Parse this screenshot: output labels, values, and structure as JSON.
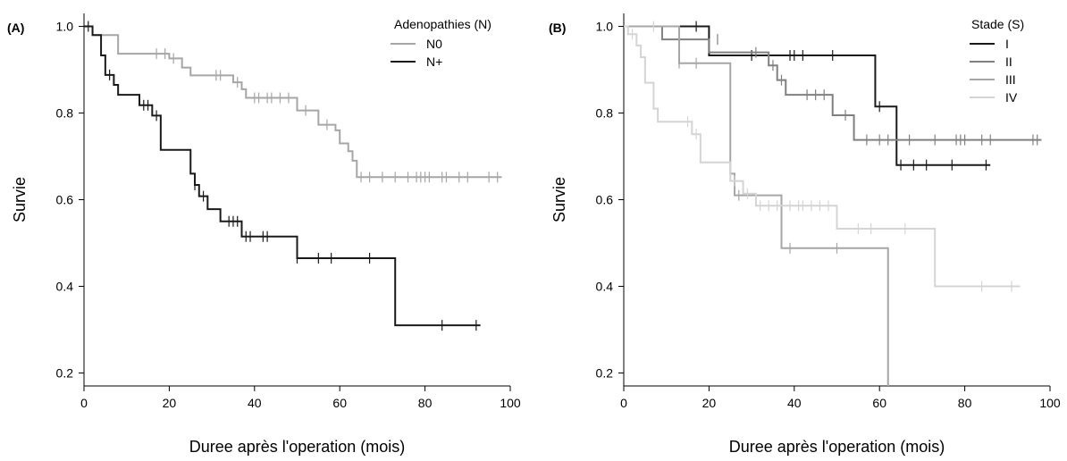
{
  "chart_data": [
    {
      "type": "line",
      "panel_label": "(A)",
      "xlabel": "Duree après l'operation (mois)",
      "ylabel": "Survie",
      "xlim": [
        0,
        100
      ],
      "ylim": [
        0.17,
        1.03
      ],
      "xticks": [
        0,
        20,
        40,
        60,
        80,
        100
      ],
      "yticks": [
        0.2,
        0.4,
        0.6,
        0.8,
        1.0
      ],
      "ytick_labels": [
        "0.2",
        "0.4",
        "0.6",
        "0.8",
        "1.0"
      ],
      "legend": {
        "title": "Adenopathies (N)",
        "placement": "top-right"
      },
      "grid": false,
      "series": [
        {
          "name": "N0",
          "color": "#a6a6a6",
          "steps": [
            [
              0,
              1.0
            ],
            [
              2,
              1.0
            ],
            [
              2,
              0.98
            ],
            [
              8,
              0.98
            ],
            [
              8,
              0.937
            ],
            [
              20,
              0.937
            ],
            [
              20,
              0.926
            ],
            [
              23,
              0.926
            ],
            [
              23,
              0.905
            ],
            [
              25,
              0.905
            ],
            [
              25,
              0.887
            ],
            [
              35,
              0.887
            ],
            [
              35,
              0.871
            ],
            [
              37,
              0.871
            ],
            [
              37,
              0.855
            ],
            [
              38,
              0.855
            ],
            [
              38,
              0.835
            ],
            [
              50,
              0.835
            ],
            [
              50,
              0.806
            ],
            [
              55,
              0.806
            ],
            [
              55,
              0.773
            ],
            [
              59,
              0.773
            ],
            [
              59,
              0.76
            ],
            [
              60,
              0.76
            ],
            [
              60,
              0.73
            ],
            [
              62,
              0.73
            ],
            [
              62,
              0.712
            ],
            [
              63,
              0.712
            ],
            [
              63,
              0.69
            ],
            [
              64,
              0.69
            ],
            [
              64,
              0.652
            ],
            [
              98,
              0.652
            ]
          ],
          "censored": [
            [
              17,
              0.937
            ],
            [
              19,
              0.937
            ],
            [
              21,
              0.926
            ],
            [
              31,
              0.887
            ],
            [
              32,
              0.887
            ],
            [
              36,
              0.871
            ],
            [
              40,
              0.835
            ],
            [
              41,
              0.835
            ],
            [
              43,
              0.835
            ],
            [
              44,
              0.835
            ],
            [
              46,
              0.835
            ],
            [
              48,
              0.835
            ],
            [
              52,
              0.806
            ],
            [
              57,
              0.773
            ],
            [
              65,
              0.652
            ],
            [
              67,
              0.652
            ],
            [
              70,
              0.652
            ],
            [
              73,
              0.652
            ],
            [
              76,
              0.652
            ],
            [
              78,
              0.652
            ],
            [
              79,
              0.652
            ],
            [
              80,
              0.652
            ],
            [
              81,
              0.652
            ],
            [
              84,
              0.652
            ],
            [
              85,
              0.652
            ],
            [
              88,
              0.652
            ],
            [
              90,
              0.652
            ],
            [
              95,
              0.652
            ],
            [
              97,
              0.652
            ]
          ]
        },
        {
          "name": "N+",
          "color": "#1a1a1a",
          "steps": [
            [
              0,
              1.0
            ],
            [
              2,
              1.0
            ],
            [
              2,
              0.98
            ],
            [
              4,
              0.98
            ],
            [
              4,
              0.933
            ],
            [
              5,
              0.933
            ],
            [
              5,
              0.888
            ],
            [
              7,
              0.888
            ],
            [
              7,
              0.865
            ],
            [
              8,
              0.865
            ],
            [
              8,
              0.842
            ],
            [
              13,
              0.842
            ],
            [
              13,
              0.818
            ],
            [
              16,
              0.818
            ],
            [
              16,
              0.794
            ],
            [
              18,
              0.794
            ],
            [
              18,
              0.715
            ],
            [
              25,
              0.715
            ],
            [
              25,
              0.66
            ],
            [
              26,
              0.66
            ],
            [
              26,
              0.634
            ],
            [
              27,
              0.634
            ],
            [
              27,
              0.608
            ],
            [
              29,
              0.608
            ],
            [
              29,
              0.578
            ],
            [
              32,
              0.578
            ],
            [
              32,
              0.55
            ],
            [
              37,
              0.55
            ],
            [
              37,
              0.515
            ],
            [
              50,
              0.515
            ],
            [
              50,
              0.465
            ],
            [
              73,
              0.465
            ],
            [
              73,
              0.31
            ],
            [
              93,
              0.31
            ]
          ],
          "censored": [
            [
              1,
              1.0
            ],
            [
              6,
              0.888
            ],
            [
              14,
              0.818
            ],
            [
              15,
              0.818
            ],
            [
              17,
              0.794
            ],
            [
              26,
              0.634
            ],
            [
              28,
              0.608
            ],
            [
              34,
              0.55
            ],
            [
              35,
              0.55
            ],
            [
              36,
              0.55
            ],
            [
              38,
              0.515
            ],
            [
              39,
              0.515
            ],
            [
              42,
              0.515
            ],
            [
              43,
              0.515
            ],
            [
              50,
              0.465
            ],
            [
              55,
              0.465
            ],
            [
              58,
              0.465
            ],
            [
              67,
              0.465
            ],
            [
              84,
              0.31
            ],
            [
              92,
              0.31
            ]
          ]
        }
      ]
    },
    {
      "type": "line",
      "panel_label": "(B)",
      "xlabel": "Duree après l'operation (mois)",
      "ylabel": "Survie",
      "xlim": [
        0,
        100
      ],
      "ylim": [
        0.17,
        1.03
      ],
      "xticks": [
        0,
        20,
        40,
        60,
        80,
        100
      ],
      "yticks": [
        0.2,
        0.4,
        0.6,
        0.8,
        1.0
      ],
      "ytick_labels": [
        "0.2",
        "0.4",
        "0.6",
        "0.8",
        "1.0"
      ],
      "legend": {
        "title": "Stade (S)",
        "placement": "top-right"
      },
      "grid": false,
      "series": [
        {
          "name": "I",
          "color": "#1a1a1a",
          "steps": [
            [
              0,
              1.0
            ],
            [
              20,
              1.0
            ],
            [
              20,
              0.933
            ],
            [
              59,
              0.933
            ],
            [
              59,
              0.815
            ],
            [
              64,
              0.815
            ],
            [
              64,
              0.68
            ],
            [
              86,
              0.68
            ]
          ],
          "censored": [
            [
              17,
              1.0
            ],
            [
              30,
              0.933
            ],
            [
              39,
              0.933
            ],
            [
              40,
              0.933
            ],
            [
              42,
              0.933
            ],
            [
              49,
              0.933
            ],
            [
              60,
              0.815
            ],
            [
              65,
              0.68
            ],
            [
              68,
              0.68
            ],
            [
              71,
              0.68
            ],
            [
              77,
              0.68
            ],
            [
              85,
              0.68
            ]
          ]
        },
        {
          "name": "II",
          "color": "#808080",
          "steps": [
            [
              0,
              1.0
            ],
            [
              9,
              1.0
            ],
            [
              9,
              0.97
            ],
            [
              20,
              0.97
            ],
            [
              20,
              0.94
            ],
            [
              34,
              0.94
            ],
            [
              34,
              0.91
            ],
            [
              36,
              0.91
            ],
            [
              36,
              0.876
            ],
            [
              38,
              0.876
            ],
            [
              38,
              0.842
            ],
            [
              49,
              0.842
            ],
            [
              49,
              0.795
            ],
            [
              54,
              0.795
            ],
            [
              54,
              0.738
            ],
            [
              98,
              0.738
            ]
          ],
          "censored": [
            [
              22,
              0.97
            ],
            [
              31,
              0.94
            ],
            [
              35,
              0.91
            ],
            [
              37,
              0.876
            ],
            [
              43,
              0.842
            ],
            [
              45,
              0.842
            ],
            [
              47,
              0.842
            ],
            [
              52,
              0.795
            ],
            [
              57,
              0.738
            ],
            [
              60,
              0.738
            ],
            [
              62,
              0.738
            ],
            [
              67,
              0.738
            ],
            [
              73,
              0.738
            ],
            [
              78,
              0.738
            ],
            [
              79,
              0.738
            ],
            [
              80,
              0.738
            ],
            [
              84,
              0.738
            ],
            [
              86,
              0.738
            ],
            [
              96,
              0.738
            ],
            [
              97,
              0.738
            ]
          ]
        },
        {
          "name": "III",
          "color": "#a6a6a6",
          "steps": [
            [
              0,
              1.0
            ],
            [
              13,
              1.0
            ],
            [
              13,
              0.915
            ],
            [
              25,
              0.915
            ],
            [
              25,
              0.66
            ],
            [
              26,
              0.66
            ],
            [
              26,
              0.61
            ],
            [
              37,
              0.61
            ],
            [
              37,
              0.488
            ],
            [
              62,
              0.488
            ],
            [
              62,
              0.17
            ]
          ],
          "censored": [
            [
              13,
              0.915
            ],
            [
              17,
              0.915
            ],
            [
              27,
              0.61
            ],
            [
              39,
              0.488
            ],
            [
              50,
              0.488
            ]
          ]
        },
        {
          "name": "IV",
          "color": "#d4d4d4",
          "steps": [
            [
              0,
              1.0
            ],
            [
              1,
              1.0
            ],
            [
              1,
              0.982
            ],
            [
              3,
              0.982
            ],
            [
              3,
              0.956
            ],
            [
              4,
              0.956
            ],
            [
              4,
              0.929
            ],
            [
              5,
              0.929
            ],
            [
              5,
              0.87
            ],
            [
              7,
              0.87
            ],
            [
              7,
              0.81
            ],
            [
              8,
              0.81
            ],
            [
              8,
              0.78
            ],
            [
              16,
              0.78
            ],
            [
              16,
              0.751
            ],
            [
              18,
              0.751
            ],
            [
              18,
              0.686
            ],
            [
              25,
              0.686
            ],
            [
              25,
              0.643
            ],
            [
              28,
              0.643
            ],
            [
              28,
              0.614
            ],
            [
              31,
              0.614
            ],
            [
              31,
              0.586
            ],
            [
              50,
              0.586
            ],
            [
              50,
              0.533
            ],
            [
              73,
              0.533
            ],
            [
              73,
              0.4
            ],
            [
              93,
              0.4
            ]
          ],
          "censored": [
            [
              2,
              0.982
            ],
            [
              7,
              1.0
            ],
            [
              15,
              0.78
            ],
            [
              17,
              0.751
            ],
            [
              26,
              0.643
            ],
            [
              29,
              0.614
            ],
            [
              32,
              0.586
            ],
            [
              34,
              0.586
            ],
            [
              36,
              0.586
            ],
            [
              39,
              0.586
            ],
            [
              41,
              0.586
            ],
            [
              42,
              0.586
            ],
            [
              44,
              0.586
            ],
            [
              46,
              0.586
            ],
            [
              48,
              0.586
            ],
            [
              55,
              0.533
            ],
            [
              58,
              0.533
            ],
            [
              66,
              0.533
            ],
            [
              84,
              0.4
            ],
            [
              91,
              0.4
            ]
          ]
        }
      ]
    }
  ]
}
